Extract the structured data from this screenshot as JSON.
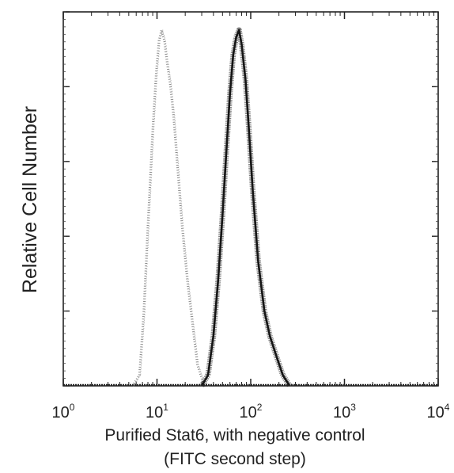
{
  "chart_data": {
    "type": "line",
    "title": "",
    "xlabel": "Purified Stat6, with negative control",
    "xlabel_line2": "(FITC second step)",
    "ylabel": "Relative Cell Number",
    "x_scale": "log",
    "xlim": [
      1,
      10000
    ],
    "ylim": [
      0,
      100
    ],
    "x_ticks": [
      {
        "base": "10",
        "exp": "0"
      },
      {
        "base": "10",
        "exp": "1"
      },
      {
        "base": "10",
        "exp": "2"
      },
      {
        "base": "10",
        "exp": "3"
      },
      {
        "base": "10",
        "exp": "4"
      }
    ],
    "y_ticks_labeled": false,
    "grid": false,
    "legend": "none",
    "series": [
      {
        "style": "dotted-light",
        "color": "#8a8a8a",
        "x": [
          5.5,
          6.5,
          7.2,
          8.0,
          9.0,
          9.8,
          10.5,
          11.2,
          12.0,
          12.8,
          13.8,
          15.0,
          16.5,
          18.5,
          21.0,
          24.0,
          27.0,
          31.0,
          36.0
        ],
        "y": [
          0,
          3,
          20,
          45,
          72,
          88,
          97,
          100,
          97,
          91,
          85,
          76,
          62,
          45,
          30,
          17,
          6,
          1,
          0
        ]
      },
      {
        "style": "dense-dark",
        "color": "#151515",
        "x": [
          30,
          35,
          40,
          45,
          50,
          55,
          60,
          65,
          70,
          75,
          80,
          88,
          95,
          105,
          120,
          140,
          160,
          190,
          220,
          260
        ],
        "y": [
          0,
          3,
          14,
          30,
          48,
          66,
          82,
          93,
          98,
          100,
          96,
          86,
          73,
          55,
          35,
          21,
          14,
          8,
          3,
          0
        ]
      }
    ]
  }
}
